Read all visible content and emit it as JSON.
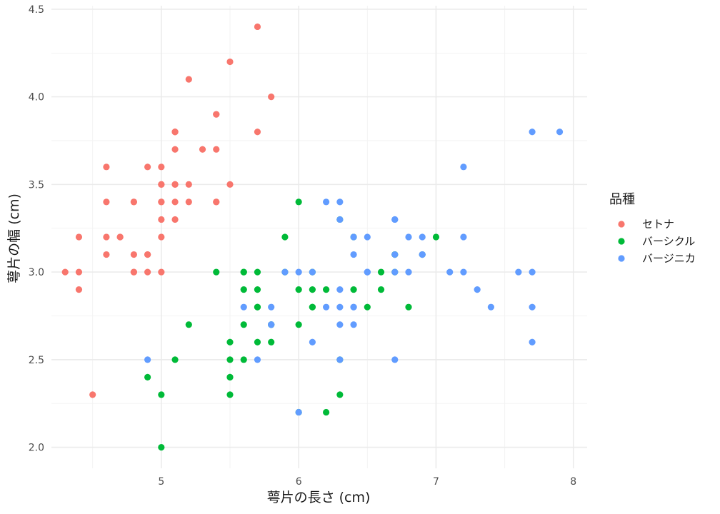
{
  "chart_data": {
    "type": "scatter",
    "title": "",
    "xlabel": "萼片の長さ (cm)",
    "ylabel": "萼片の幅 (cm)",
    "xlim": [
      4.2,
      8.1
    ],
    "ylim": [
      1.88,
      4.52
    ],
    "x_ticks": [
      5,
      6,
      7,
      8
    ],
    "y_ticks": [
      2.0,
      2.5,
      3.0,
      3.5,
      4.0,
      4.5
    ],
    "x_tick_labels": [
      "5",
      "6",
      "7",
      "8"
    ],
    "y_tick_labels": [
      "2.0",
      "2.5",
      "3.0",
      "3.5",
      "4.0",
      "4.5"
    ],
    "grid": true,
    "legend": {
      "title": "品種",
      "position": "right"
    },
    "series": [
      {
        "name": "セトナ",
        "color": "#F8766D",
        "points": [
          [
            5.1,
            3.5
          ],
          [
            4.9,
            3.0
          ],
          [
            4.7,
            3.2
          ],
          [
            4.6,
            3.1
          ],
          [
            5.0,
            3.6
          ],
          [
            5.4,
            3.9
          ],
          [
            4.6,
            3.4
          ],
          [
            5.0,
            3.4
          ],
          [
            4.4,
            2.9
          ],
          [
            4.9,
            3.1
          ],
          [
            5.4,
            3.7
          ],
          [
            4.8,
            3.4
          ],
          [
            4.8,
            3.0
          ],
          [
            4.3,
            3.0
          ],
          [
            5.8,
            4.0
          ],
          [
            5.7,
            4.4
          ],
          [
            5.4,
            3.9
          ],
          [
            5.1,
            3.5
          ],
          [
            5.7,
            3.8
          ],
          [
            5.1,
            3.8
          ],
          [
            5.4,
            3.4
          ],
          [
            5.1,
            3.7
          ],
          [
            4.6,
            3.6
          ],
          [
            5.1,
            3.3
          ],
          [
            4.8,
            3.4
          ],
          [
            5.0,
            3.0
          ],
          [
            5.0,
            3.4
          ],
          [
            5.2,
            3.5
          ],
          [
            5.2,
            3.4
          ],
          [
            4.7,
            3.2
          ],
          [
            4.8,
            3.1
          ],
          [
            5.4,
            3.4
          ],
          [
            5.2,
            4.1
          ],
          [
            5.5,
            4.2
          ],
          [
            4.9,
            3.1
          ],
          [
            5.0,
            3.2
          ],
          [
            5.5,
            3.5
          ],
          [
            4.9,
            3.6
          ],
          [
            4.4,
            3.0
          ],
          [
            5.1,
            3.4
          ],
          [
            5.0,
            3.5
          ],
          [
            4.5,
            2.3
          ],
          [
            4.4,
            3.2
          ],
          [
            5.0,
            3.5
          ],
          [
            5.1,
            3.8
          ],
          [
            4.8,
            3.0
          ],
          [
            5.1,
            3.8
          ],
          [
            4.6,
            3.2
          ],
          [
            5.3,
            3.7
          ],
          [
            5.0,
            3.3
          ]
        ]
      },
      {
        "name": "バーシクル",
        "color": "#00BA38",
        "points": [
          [
            7.0,
            3.2
          ],
          [
            6.4,
            3.2
          ],
          [
            6.9,
            3.1
          ],
          [
            5.5,
            2.3
          ],
          [
            6.5,
            2.8
          ],
          [
            5.7,
            2.8
          ],
          [
            6.3,
            3.3
          ],
          [
            4.9,
            2.4
          ],
          [
            6.6,
            2.9
          ],
          [
            5.2,
            2.7
          ],
          [
            5.0,
            2.0
          ],
          [
            5.9,
            3.0
          ],
          [
            6.0,
            2.2
          ],
          [
            6.1,
            2.9
          ],
          [
            5.6,
            2.9
          ],
          [
            6.7,
            3.1
          ],
          [
            5.6,
            3.0
          ],
          [
            5.8,
            2.7
          ],
          [
            6.2,
            2.2
          ],
          [
            5.6,
            2.5
          ],
          [
            5.9,
            3.2
          ],
          [
            6.1,
            2.8
          ],
          [
            6.3,
            2.5
          ],
          [
            6.1,
            2.8
          ],
          [
            6.4,
            2.9
          ],
          [
            6.6,
            3.0
          ],
          [
            6.8,
            2.8
          ],
          [
            6.7,
            3.0
          ],
          [
            6.0,
            2.9
          ],
          [
            5.7,
            2.6
          ],
          [
            5.5,
            2.4
          ],
          [
            5.5,
            2.4
          ],
          [
            5.8,
            2.7
          ],
          [
            6.0,
            2.7
          ],
          [
            5.4,
            3.0
          ],
          [
            6.0,
            3.4
          ],
          [
            6.7,
            3.1
          ],
          [
            6.3,
            2.3
          ],
          [
            5.6,
            3.0
          ],
          [
            5.5,
            2.5
          ],
          [
            5.5,
            2.6
          ],
          [
            6.1,
            3.0
          ],
          [
            5.8,
            2.6
          ],
          [
            5.0,
            2.3
          ],
          [
            5.6,
            2.7
          ],
          [
            5.7,
            3.0
          ],
          [
            5.7,
            2.9
          ],
          [
            6.2,
            2.9
          ],
          [
            5.1,
            2.5
          ],
          [
            5.7,
            2.8
          ]
        ]
      },
      {
        "name": "バージニカ",
        "color": "#619CFF",
        "points": [
          [
            6.3,
            3.3
          ],
          [
            5.8,
            2.7
          ],
          [
            7.1,
            3.0
          ],
          [
            6.3,
            2.9
          ],
          [
            6.5,
            3.0
          ],
          [
            7.6,
            3.0
          ],
          [
            4.9,
            2.5
          ],
          [
            7.3,
            2.9
          ],
          [
            6.7,
            2.5
          ],
          [
            7.2,
            3.6
          ],
          [
            6.5,
            3.2
          ],
          [
            6.4,
            2.7
          ],
          [
            6.8,
            3.0
          ],
          [
            5.7,
            2.5
          ],
          [
            5.8,
            2.8
          ],
          [
            6.4,
            3.2
          ],
          [
            6.5,
            3.0
          ],
          [
            7.7,
            3.8
          ],
          [
            7.7,
            2.6
          ],
          [
            6.0,
            2.2
          ],
          [
            6.9,
            3.2
          ],
          [
            5.6,
            2.8
          ],
          [
            7.7,
            2.8
          ],
          [
            6.3,
            2.7
          ],
          [
            6.7,
            3.3
          ],
          [
            7.2,
            3.2
          ],
          [
            6.2,
            2.8
          ],
          [
            6.1,
            3.0
          ],
          [
            6.4,
            2.8
          ],
          [
            7.2,
            3.0
          ],
          [
            7.4,
            2.8
          ],
          [
            7.9,
            3.8
          ],
          [
            6.4,
            2.8
          ],
          [
            6.3,
            2.8
          ],
          [
            6.1,
            2.6
          ],
          [
            7.7,
            3.0
          ],
          [
            6.3,
            3.4
          ],
          [
            6.4,
            3.1
          ],
          [
            6.0,
            3.0
          ],
          [
            6.9,
            3.1
          ],
          [
            6.7,
            3.1
          ],
          [
            6.9,
            3.1
          ],
          [
            5.8,
            2.7
          ],
          [
            6.8,
            3.2
          ],
          [
            6.7,
            3.3
          ],
          [
            6.7,
            3.0
          ],
          [
            6.3,
            2.5
          ],
          [
            6.5,
            3.0
          ],
          [
            6.2,
            3.4
          ],
          [
            5.9,
            3.0
          ]
        ]
      }
    ]
  }
}
